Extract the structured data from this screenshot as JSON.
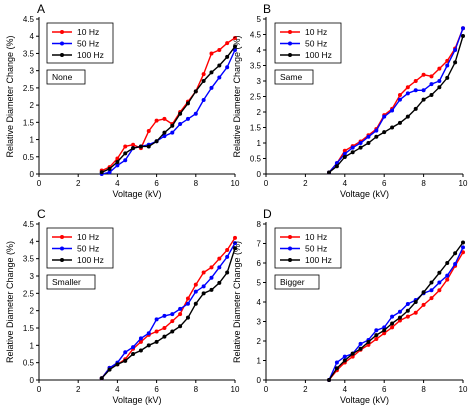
{
  "chart_data": [
    {
      "type": "line",
      "panel_label": "A",
      "condition": "None",
      "xlabel": "Voltage (kV)",
      "ylabel": "Relative Diameter Change (%)",
      "xlim": [
        0,
        10
      ],
      "ylim": [
        0,
        4.5
      ],
      "xticks": [
        "0",
        "2",
        "4",
        "6",
        "8",
        "10"
      ],
      "yticks": [
        "0",
        "0.5",
        "1",
        "1.5",
        "2",
        "2.5",
        "3",
        "3.5",
        "4",
        "4.5"
      ],
      "series": [
        {
          "name": "10 Hz",
          "color": "#ff0000",
          "points": [
            [
              3.2,
              0.1
            ],
            [
              3.6,
              0.2
            ],
            [
              4.0,
              0.45
            ],
            [
              4.4,
              0.8
            ],
            [
              4.8,
              0.85
            ],
            [
              5.2,
              0.75
            ],
            [
              5.6,
              1.25
            ],
            [
              6.0,
              1.55
            ],
            [
              6.4,
              1.6
            ],
            [
              6.8,
              1.45
            ],
            [
              7.2,
              1.8
            ],
            [
              7.6,
              2.1
            ],
            [
              8.0,
              2.4
            ],
            [
              8.4,
              2.9
            ],
            [
              8.8,
              3.5
            ],
            [
              9.2,
              3.6
            ],
            [
              9.6,
              3.8
            ],
            [
              10.0,
              3.95
            ]
          ]
        },
        {
          "name": "50 Hz",
          "color": "#0000ff",
          "points": [
            [
              3.2,
              0.0
            ],
            [
              3.6,
              0.05
            ],
            [
              4.0,
              0.25
            ],
            [
              4.4,
              0.4
            ],
            [
              4.8,
              0.75
            ],
            [
              5.2,
              0.8
            ],
            [
              5.6,
              0.85
            ],
            [
              6.0,
              0.95
            ],
            [
              6.4,
              1.1
            ],
            [
              6.8,
              1.2
            ],
            [
              7.2,
              1.45
            ],
            [
              7.6,
              1.6
            ],
            [
              8.0,
              1.75
            ],
            [
              8.4,
              2.15
            ],
            [
              8.8,
              2.5
            ],
            [
              9.2,
              2.8
            ],
            [
              9.6,
              3.1
            ],
            [
              10.0,
              3.6
            ]
          ]
        },
        {
          "name": "100 Hz",
          "color": "#000000",
          "points": [
            [
              3.2,
              0.05
            ],
            [
              3.6,
              0.15
            ],
            [
              4.0,
              0.35
            ],
            [
              4.4,
              0.6
            ],
            [
              4.8,
              0.75
            ],
            [
              5.2,
              0.8
            ],
            [
              5.6,
              0.8
            ],
            [
              6.0,
              0.95
            ],
            [
              6.4,
              1.2
            ],
            [
              6.8,
              1.4
            ],
            [
              7.2,
              1.75
            ],
            [
              7.6,
              2.05
            ],
            [
              8.0,
              2.4
            ],
            [
              8.4,
              2.7
            ],
            [
              8.8,
              2.95
            ],
            [
              9.2,
              3.15
            ],
            [
              9.6,
              3.4
            ],
            [
              10.0,
              3.7
            ]
          ]
        }
      ]
    },
    {
      "type": "line",
      "panel_label": "B",
      "condition": "Same",
      "xlabel": "Voltage (kV)",
      "ylabel": "Relative Diameter Change (%)",
      "xlim": [
        0,
        10
      ],
      "ylim": [
        0,
        5
      ],
      "xticks": [
        "0",
        "2",
        "4",
        "6",
        "8",
        "10"
      ],
      "yticks": [
        "0",
        "0.5",
        "1",
        "1.5",
        "2",
        "2.5",
        "3",
        "3.5",
        "4",
        "4.5",
        "5"
      ],
      "series": [
        {
          "name": "10 Hz",
          "color": "#ff0000",
          "points": [
            [
              3.2,
              0.05
            ],
            [
              3.6,
              0.35
            ],
            [
              4.0,
              0.75
            ],
            [
              4.4,
              0.9
            ],
            [
              4.8,
              1.05
            ],
            [
              5.2,
              1.25
            ],
            [
              5.6,
              1.45
            ],
            [
              6.0,
              1.9
            ],
            [
              6.4,
              2.1
            ],
            [
              6.8,
              2.55
            ],
            [
              7.2,
              2.8
            ],
            [
              7.6,
              3.0
            ],
            [
              8.0,
              3.2
            ],
            [
              8.4,
              3.15
            ],
            [
              8.8,
              3.4
            ],
            [
              9.2,
              3.65
            ],
            [
              9.6,
              4.05
            ],
            [
              10.0,
              4.7
            ]
          ]
        },
        {
          "name": "50 Hz",
          "color": "#0000ff",
          "points": [
            [
              3.2,
              0.05
            ],
            [
              3.6,
              0.35
            ],
            [
              4.0,
              0.65
            ],
            [
              4.4,
              0.85
            ],
            [
              4.8,
              1.0
            ],
            [
              5.2,
              1.2
            ],
            [
              5.6,
              1.4
            ],
            [
              6.0,
              1.85
            ],
            [
              6.4,
              2.05
            ],
            [
              6.8,
              2.4
            ],
            [
              7.2,
              2.6
            ],
            [
              7.6,
              2.7
            ],
            [
              8.0,
              2.7
            ],
            [
              8.4,
              2.9
            ],
            [
              8.8,
              3.0
            ],
            [
              9.2,
              3.5
            ],
            [
              9.6,
              4.0
            ],
            [
              10.0,
              4.7
            ]
          ]
        },
        {
          "name": "100 Hz",
          "color": "#000000",
          "points": [
            [
              3.2,
              0.05
            ],
            [
              3.6,
              0.25
            ],
            [
              4.0,
              0.55
            ],
            [
              4.4,
              0.7
            ],
            [
              4.8,
              0.85
            ],
            [
              5.2,
              1.0
            ],
            [
              5.6,
              1.2
            ],
            [
              6.0,
              1.35
            ],
            [
              6.4,
              1.5
            ],
            [
              6.8,
              1.65
            ],
            [
              7.2,
              1.85
            ],
            [
              7.6,
              2.1
            ],
            [
              8.0,
              2.4
            ],
            [
              8.4,
              2.55
            ],
            [
              8.8,
              2.8
            ],
            [
              9.2,
              3.1
            ],
            [
              9.6,
              3.6
            ],
            [
              10.0,
              4.45
            ]
          ]
        }
      ]
    },
    {
      "type": "line",
      "panel_label": "C",
      "condition": "Smaller",
      "xlabel": "Voltage (kV)",
      "ylabel": "Relative Diameter Change (%)",
      "xlim": [
        0,
        10
      ],
      "ylim": [
        0,
        4.5
      ],
      "xticks": [
        "0",
        "2",
        "4",
        "6",
        "8",
        "10"
      ],
      "yticks": [
        "0",
        "0.5",
        "1",
        "1.5",
        "2",
        "2.5",
        "3",
        "3.5",
        "4",
        "4.5"
      ],
      "series": [
        {
          "name": "10 Hz",
          "color": "#ff0000",
          "points": [
            [
              3.2,
              0.05
            ],
            [
              3.6,
              0.35
            ],
            [
              4.0,
              0.45
            ],
            [
              4.4,
              0.6
            ],
            [
              4.8,
              0.9
            ],
            [
              5.2,
              1.1
            ],
            [
              5.6,
              1.3
            ],
            [
              6.0,
              1.4
            ],
            [
              6.4,
              1.5
            ],
            [
              6.8,
              1.7
            ],
            [
              7.2,
              1.9
            ],
            [
              7.6,
              2.35
            ],
            [
              8.0,
              2.75
            ],
            [
              8.4,
              3.1
            ],
            [
              8.8,
              3.25
            ],
            [
              9.2,
              3.5
            ],
            [
              9.6,
              3.75
            ],
            [
              10.0,
              4.1
            ]
          ]
        },
        {
          "name": "50 Hz",
          "color": "#0000ff",
          "points": [
            [
              3.2,
              0.05
            ],
            [
              3.6,
              0.35
            ],
            [
              4.0,
              0.5
            ],
            [
              4.4,
              0.8
            ],
            [
              4.8,
              0.95
            ],
            [
              5.2,
              1.2
            ],
            [
              5.6,
              1.35
            ],
            [
              6.0,
              1.75
            ],
            [
              6.4,
              1.85
            ],
            [
              6.8,
              1.9
            ],
            [
              7.2,
              2.05
            ],
            [
              7.6,
              2.2
            ],
            [
              8.0,
              2.55
            ],
            [
              8.4,
              2.7
            ],
            [
              8.8,
              2.95
            ],
            [
              9.2,
              3.25
            ],
            [
              9.6,
              3.55
            ],
            [
              10.0,
              3.95
            ]
          ]
        },
        {
          "name": "100 Hz",
          "color": "#000000",
          "points": [
            [
              3.2,
              0.05
            ],
            [
              3.6,
              0.3
            ],
            [
              4.0,
              0.45
            ],
            [
              4.4,
              0.55
            ],
            [
              4.8,
              0.75
            ],
            [
              5.2,
              0.85
            ],
            [
              5.6,
              1.0
            ],
            [
              6.0,
              1.1
            ],
            [
              6.4,
              1.25
            ],
            [
              6.8,
              1.4
            ],
            [
              7.2,
              1.55
            ],
            [
              7.6,
              1.8
            ],
            [
              8.0,
              2.2
            ],
            [
              8.4,
              2.5
            ],
            [
              8.8,
              2.6
            ],
            [
              9.2,
              2.8
            ],
            [
              9.6,
              3.1
            ],
            [
              10.0,
              3.8
            ]
          ]
        }
      ]
    },
    {
      "type": "line",
      "panel_label": "D",
      "condition": "Bigger",
      "xlabel": "Voltage (kV)",
      "ylabel": "Relative Diameter Change (%)",
      "xlim": [
        0,
        10
      ],
      "ylim": [
        0,
        8
      ],
      "xticks": [
        "0",
        "2",
        "4",
        "6",
        "8",
        "10"
      ],
      "yticks": [
        "0",
        "1",
        "2",
        "3",
        "4",
        "5",
        "6",
        "7",
        "8"
      ],
      "series": [
        {
          "name": "10 Hz",
          "color": "#ff0000",
          "points": [
            [
              3.2,
              0.0
            ],
            [
              3.6,
              0.5
            ],
            [
              4.0,
              0.9
            ],
            [
              4.4,
              1.2
            ],
            [
              4.8,
              1.55
            ],
            [
              5.2,
              1.8
            ],
            [
              5.6,
              2.1
            ],
            [
              6.0,
              2.4
            ],
            [
              6.4,
              2.7
            ],
            [
              6.8,
              3.05
            ],
            [
              7.2,
              3.25
            ],
            [
              7.6,
              3.45
            ],
            [
              8.0,
              3.85
            ],
            [
              8.4,
              4.2
            ],
            [
              8.8,
              4.6
            ],
            [
              9.2,
              5.15
            ],
            [
              9.6,
              5.85
            ],
            [
              10.0,
              6.55
            ]
          ]
        },
        {
          "name": "50 Hz",
          "color": "#0000ff",
          "points": [
            [
              3.2,
              0.0
            ],
            [
              3.6,
              0.9
            ],
            [
              4.0,
              1.2
            ],
            [
              4.4,
              1.35
            ],
            [
              4.8,
              1.85
            ],
            [
              5.2,
              2.05
            ],
            [
              5.6,
              2.55
            ],
            [
              6.0,
              2.7
            ],
            [
              6.4,
              3.25
            ],
            [
              6.8,
              3.5
            ],
            [
              7.2,
              3.9
            ],
            [
              7.6,
              4.1
            ],
            [
              8.0,
              4.45
            ],
            [
              8.4,
              4.6
            ],
            [
              8.8,
              5.0
            ],
            [
              9.2,
              5.35
            ],
            [
              9.6,
              5.95
            ],
            [
              10.0,
              6.8
            ]
          ]
        },
        {
          "name": "100 Hz",
          "color": "#000000",
          "points": [
            [
              3.2,
              0.0
            ],
            [
              3.6,
              0.6
            ],
            [
              4.0,
              1.0
            ],
            [
              4.4,
              1.35
            ],
            [
              4.8,
              1.6
            ],
            [
              5.2,
              1.95
            ],
            [
              5.6,
              2.3
            ],
            [
              6.0,
              2.55
            ],
            [
              6.4,
              2.9
            ],
            [
              6.8,
              3.2
            ],
            [
              7.2,
              3.55
            ],
            [
              7.6,
              4.0
            ],
            [
              8.0,
              4.5
            ],
            [
              8.4,
              5.0
            ],
            [
              8.8,
              5.5
            ],
            [
              9.2,
              6.0
            ],
            [
              9.6,
              6.5
            ],
            [
              10.0,
              7.05
            ]
          ]
        }
      ]
    }
  ]
}
